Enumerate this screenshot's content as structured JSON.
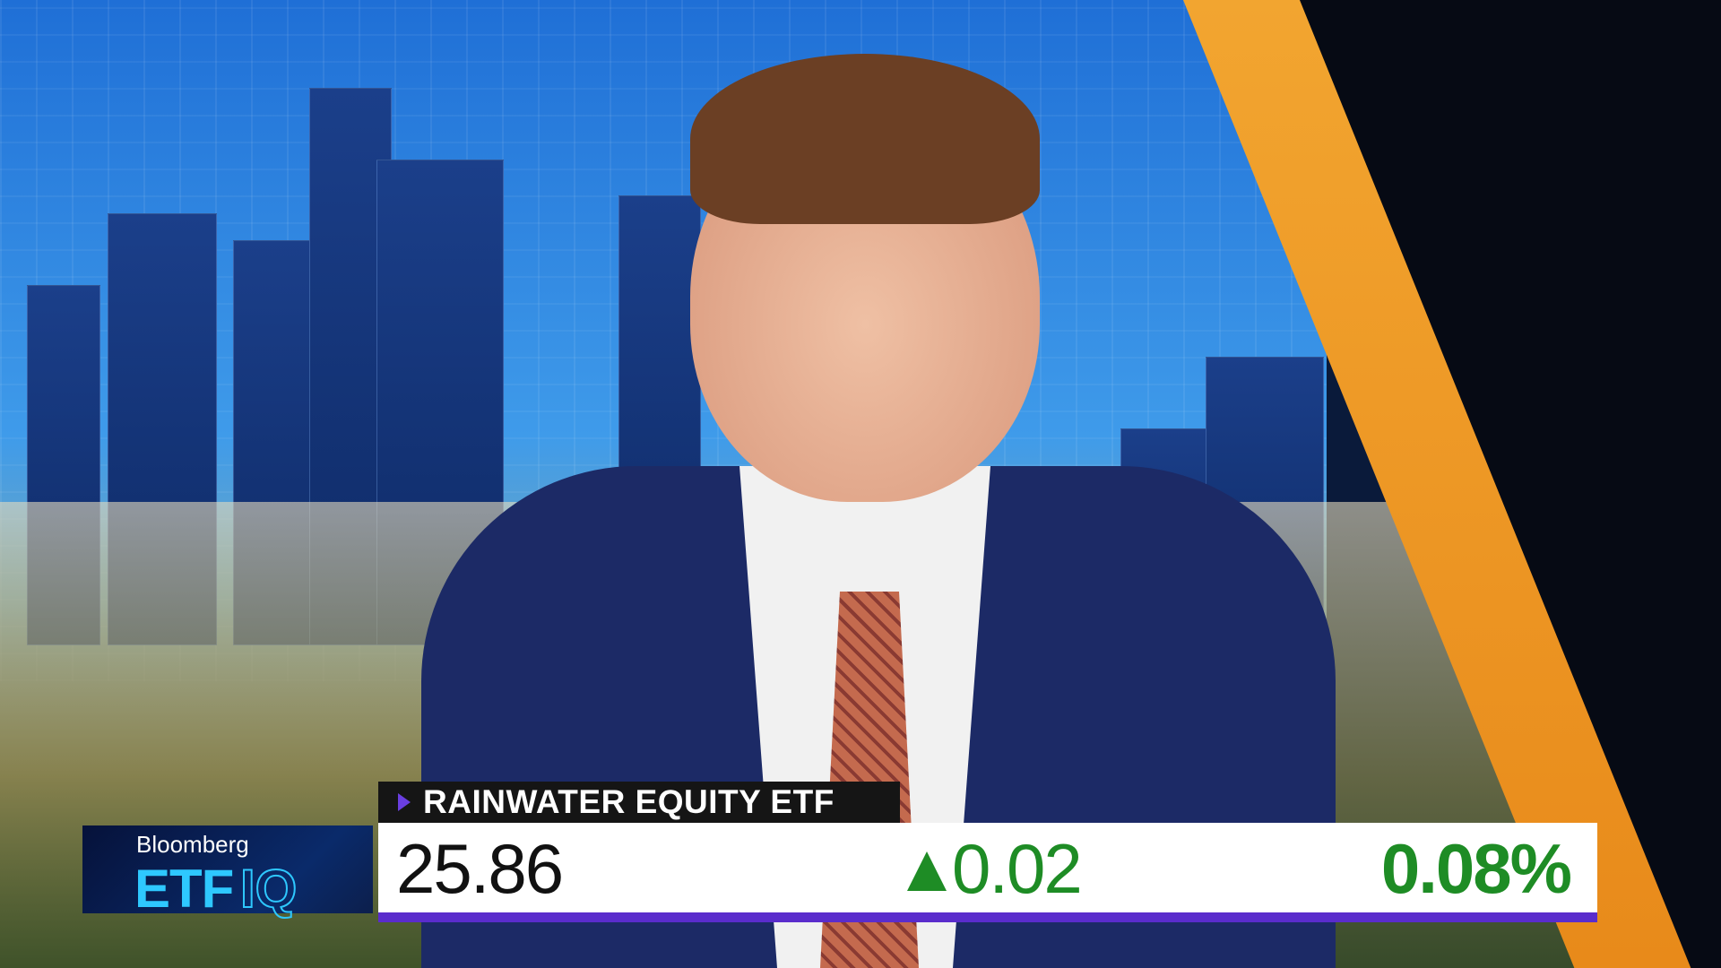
{
  "broadcast": {
    "logo": {
      "brand": "Bloomberg",
      "show_name_1": "ETF",
      "show_name_2": "IQ"
    },
    "lower_third": {
      "title": "RAINWATER EQUITY ETF",
      "price": "25.86",
      "change": "0.02",
      "change_direction": "up",
      "change_percent": "0.08%",
      "colors": {
        "positive": "#1e8c25",
        "accent": "#5a2ccc",
        "title_bg": "#151515"
      }
    }
  }
}
